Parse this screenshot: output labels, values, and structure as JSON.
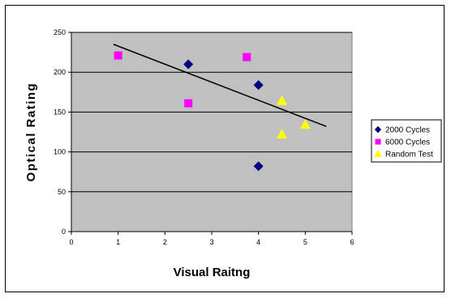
{
  "chart_data": {
    "type": "scatter",
    "title": "",
    "xlabel": "Visual Raitng",
    "ylabel": "Optical  Rating",
    "xlim": [
      0,
      6
    ],
    "ylim": [
      0,
      250
    ],
    "x_ticks": [
      0,
      1,
      2,
      3,
      4,
      5,
      6
    ],
    "y_ticks": [
      0,
      50,
      100,
      150,
      200,
      250
    ],
    "grid": "horizontal",
    "plot_background": "#c0c0c0",
    "legend_position": "right",
    "series": [
      {
        "name": "2000 Cycles",
        "marker": "diamond",
        "color": "#000080",
        "points": [
          {
            "x": 2.5,
            "y": 210
          },
          {
            "x": 4.0,
            "y": 184
          },
          {
            "x": 4.0,
            "y": 82
          }
        ]
      },
      {
        "name": "6000 Cycles",
        "marker": "square",
        "color": "#ff00ff",
        "points": [
          {
            "x": 1.0,
            "y": 221
          },
          {
            "x": 2.5,
            "y": 161
          },
          {
            "x": 3.75,
            "y": 219
          }
        ]
      },
      {
        "name": "Random Test",
        "marker": "triangle",
        "color": "#ffff00",
        "points": [
          {
            "x": 4.5,
            "y": 164
          },
          {
            "x": 4.5,
            "y": 122
          },
          {
            "x": 5.0,
            "y": 134
          }
        ]
      }
    ],
    "trendline": {
      "color": "#000000",
      "start": {
        "x": 0.9,
        "y": 235
      },
      "end": {
        "x": 5.45,
        "y": 132
      }
    }
  }
}
